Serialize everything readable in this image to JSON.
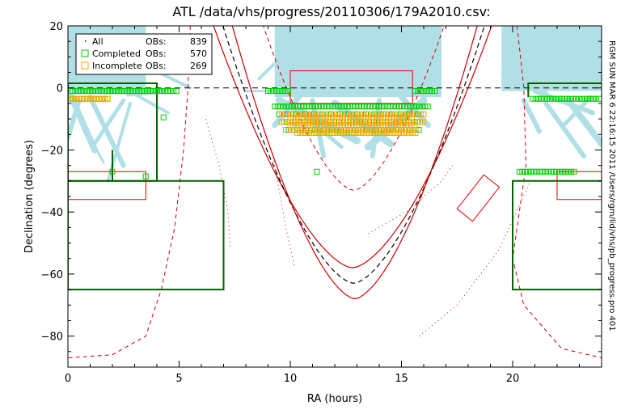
{
  "chart_data": {
    "type": "scatter",
    "title": "ATL /data/vhs/progress/20110306/179A2010.csv:",
    "xlabel": "RA (hours)",
    "ylabel": "Declination (degrees)",
    "xlim": [
      0,
      24
    ],
    "ylim": [
      -90,
      20
    ],
    "x_ticks": [
      0,
      5,
      10,
      15,
      20
    ],
    "y_ticks": [
      20,
      0,
      -20,
      -40,
      -60,
      -80
    ],
    "x_tick_labels": [
      "0",
      "5",
      "10",
      "15",
      "20"
    ],
    "y_tick_labels": [
      "20",
      "0",
      "−20",
      "−40",
      "−60",
      "−80"
    ],
    "side_note": "RGM SUN MAR  6 22:16:15 2011 /Users/rgm/lid/vhs/pb_progress.pro 401",
    "legend": {
      "position": "top-left",
      "entries": [
        {
          "marker": "dot",
          "label": "All",
          "count_label": "OBs:",
          "count": "839",
          "color": "#000000"
        },
        {
          "marker": "square",
          "label": "Completed",
          "count_label": "OBs:",
          "count": "570",
          "color": "#00cc00"
        },
        {
          "marker": "square",
          "label": "Incomplete",
          "count_label": "OBs:",
          "count": "269",
          "color": "#ffa500"
        }
      ]
    },
    "colors": {
      "tracks": "#b0e0e6",
      "completed": "#00cc00",
      "incomplete": "#ffa500",
      "survey_boundary": "#006400",
      "sky_region": "#e00000",
      "curves": "#d00000"
    },
    "completed_rows": [
      {
        "dec": -1,
        "ra": [
          0.2,
          5.0
        ]
      },
      {
        "dec": -1,
        "ra": [
          9.0,
          10.0
        ]
      },
      {
        "dec": -1,
        "ra": [
          15.6,
          16.6
        ]
      },
      {
        "dec": -3.5,
        "ra": [
          0.1,
          1.9
        ]
      },
      {
        "dec": -3.5,
        "ra": [
          20.9,
          23.9
        ]
      },
      {
        "dec": -6,
        "ra": [
          9.3,
          16.3
        ]
      },
      {
        "dec": -27,
        "ra": [
          20.3,
          22.8
        ]
      }
    ],
    "completed_points": [
      {
        "ra": 4.3,
        "dec": -9.5
      },
      {
        "ra": 3.5,
        "dec": -28.5
      },
      {
        "ra": 11.2,
        "dec": -27
      },
      {
        "ra": 2.0,
        "dec": -27
      }
    ],
    "mixed_rows": [
      {
        "dec": -8.5,
        "ra": [
          9.5,
          16.1
        ]
      },
      {
        "dec": -11,
        "ra": [
          9.6,
          16.0
        ]
      },
      {
        "dec": -13.5,
        "ra": [
          9.8,
          15.9
        ]
      }
    ],
    "incomplete_rows": [
      {
        "dec": -3.5,
        "ra": [
          0.1,
          1.9
        ]
      },
      {
        "dec": -9.5,
        "ra": [
          10.0,
          15.5
        ]
      },
      {
        "dec": -12,
        "ra": [
          10.0,
          15.6
        ]
      },
      {
        "dec": -14.5,
        "ra": [
          10.3,
          15.7
        ]
      }
    ],
    "green_regions": [
      [
        [
          0,
          1.5
        ],
        [
          4,
          1.5
        ],
        [
          4,
          -30
        ],
        [
          0,
          -30
        ]
      ],
      [
        [
          0,
          -30
        ],
        [
          7,
          -30
        ],
        [
          7,
          -65
        ],
        [
          0,
          -65
        ]
      ],
      [
        [
          2,
          -20
        ],
        [
          2,
          -30
        ]
      ],
      [
        [
          24,
          1.5
        ],
        [
          20.7,
          1.5
        ],
        [
          20.7,
          -3
        ]
      ],
      [
        [
          24,
          -30
        ],
        [
          20,
          -30
        ],
        [
          20,
          -65
        ],
        [
          24,
          -65
        ]
      ]
    ],
    "red_rects": [
      [
        [
          10,
          5.5
        ],
        [
          15.5,
          5.5
        ],
        [
          15.5,
          -5
        ],
        [
          10,
          -5
        ]
      ],
      [
        [
          0,
          -27
        ],
        [
          3.5,
          -27
        ],
        [
          3.5,
          -36
        ],
        [
          0,
          -36
        ]
      ],
      [
        [
          24,
          -27
        ],
        [
          22,
          -27
        ],
        [
          22,
          -36
        ],
        [
          24,
          -36
        ]
      ],
      [
        [
          18.7,
          -28
        ],
        [
          19.4,
          -32
        ],
        [
          18.2,
          -43
        ],
        [
          17.5,
          -39
        ]
      ]
    ]
  }
}
